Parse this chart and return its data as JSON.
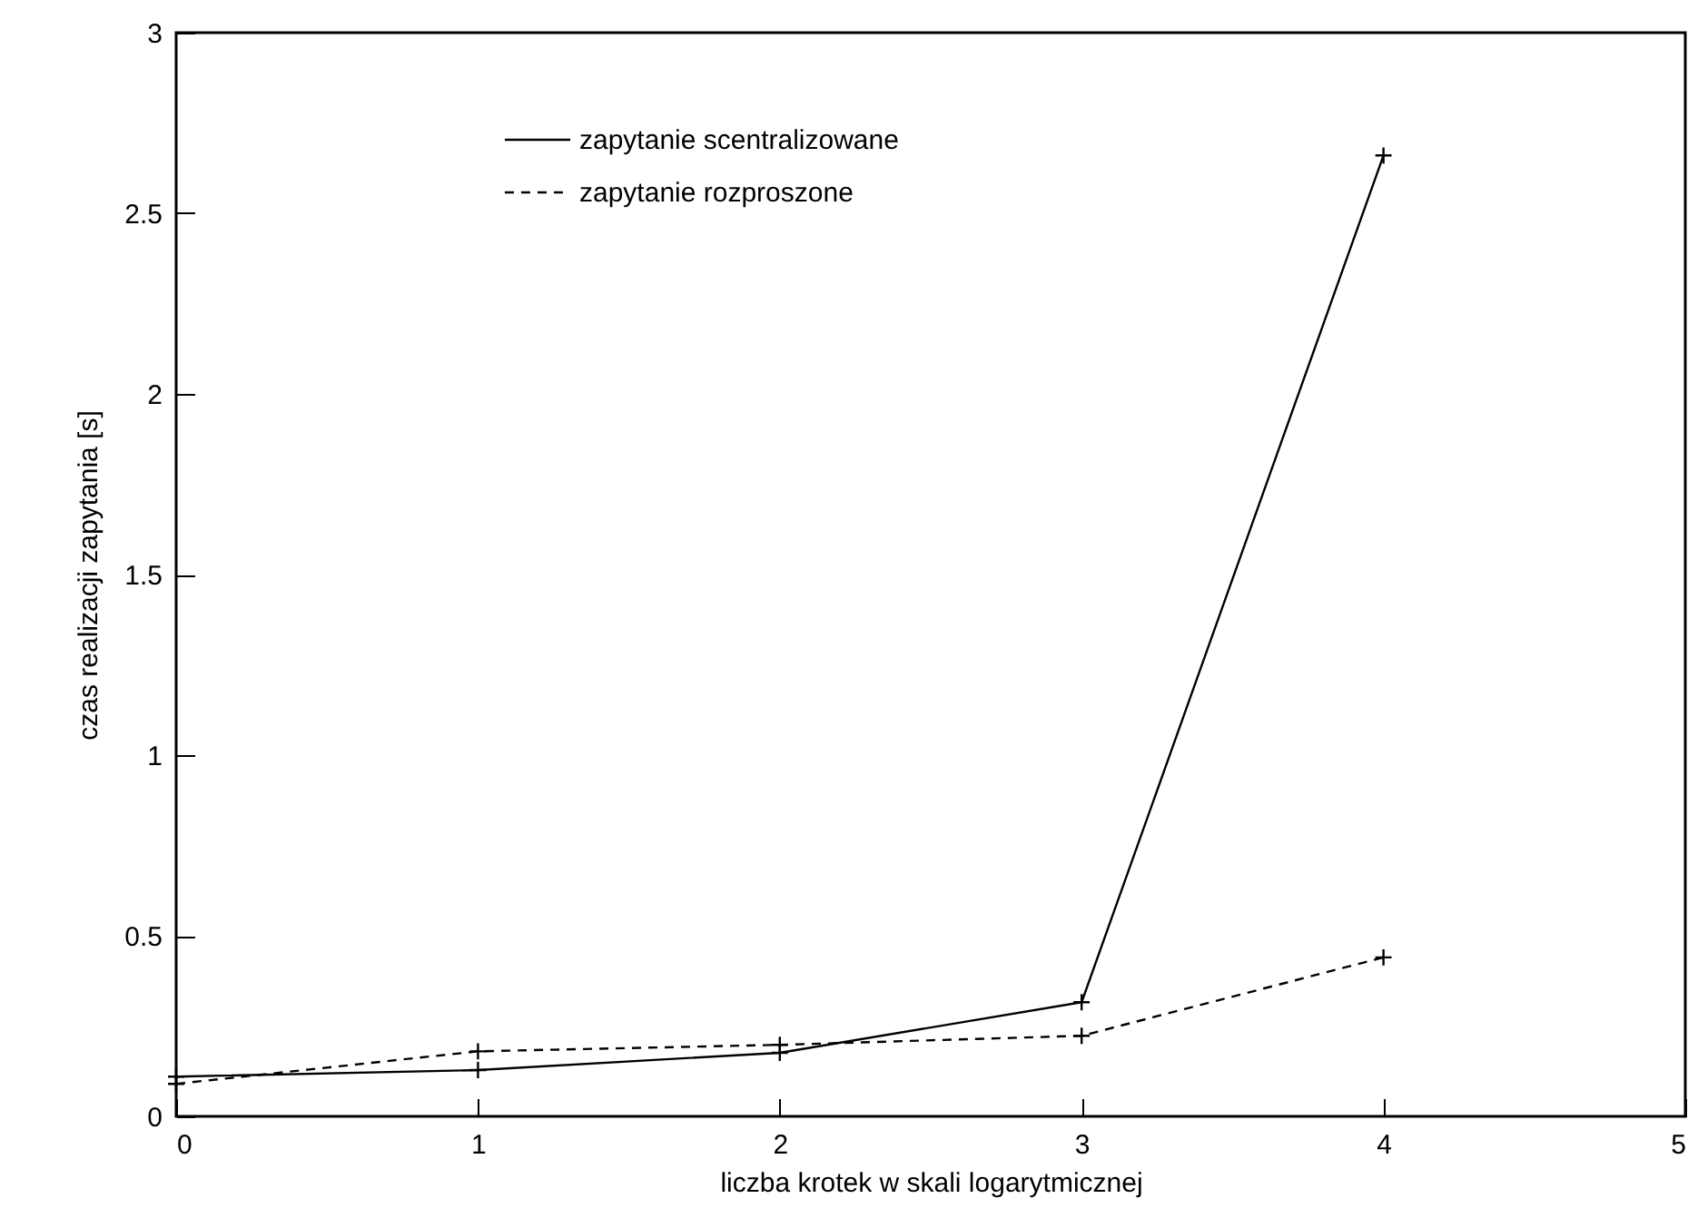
{
  "chart_data": {
    "type": "line",
    "xlabel": "liczba krotek w skali logarytmicznej",
    "ylabel": "czas realizacji zapytania [s]",
    "x": [
      0,
      1,
      2,
      3,
      4
    ],
    "xlim": [
      0,
      5
    ],
    "xticks": [
      0,
      1,
      2,
      3,
      4,
      5
    ],
    "ylim": [
      0,
      3
    ],
    "yticks": [
      0,
      0.5,
      1,
      1.5,
      2,
      2.5,
      3
    ],
    "grid": false,
    "legend": "top",
    "marker": "cross",
    "series": [
      {
        "name": "zapytanie scentralizowane",
        "color": "#000000",
        "line_style": "solid",
        "values": [
          0.11,
          0.128,
          0.176,
          0.316,
          2.66
        ]
      },
      {
        "name": "zapytanie rozproszone",
        "color": "#000000",
        "line_style": "dashed",
        "values": [
          0.09,
          0.18,
          0.198,
          0.223,
          0.44
        ]
      }
    ]
  }
}
